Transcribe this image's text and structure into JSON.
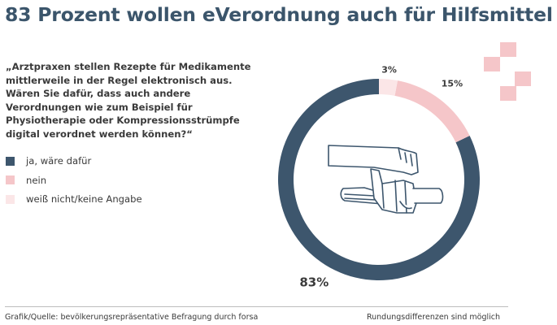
{
  "title": "83 Prozent wollen eVerordnung auch für Hilfsmittel",
  "question": "„Arztpraxen stellen Rezepte für Medikamente mittlerweile in der Regel elektronisch aus. Wären Sie dafür, dass auch andere Verordnungen wie zum Beispiel für Physiotherapie oder Kompressionsstrümpfe digital verordnet werden können?“",
  "footer": {
    "source": "Grafik/Quelle: bevölkerungsrepräsentative Befragung durch forsa",
    "note": "Rundungsdifferenzen sind möglich"
  },
  "colors": {
    "title": "#3b556b",
    "ja": "#3d566d",
    "nein": "#f5c6c9",
    "weiss_nicht": "#fbe6e7",
    "deco": "#f5c6c9"
  },
  "icon": "hand-with-compression-stocking-icon",
  "chart_data": {
    "type": "pie",
    "donut": true,
    "labels": [
      "ja, wäre dafür",
      "nein",
      "weiß nicht/keine Angabe"
    ],
    "values": [
      83,
      15,
      3
    ],
    "value_labels": [
      "83%",
      "15%",
      "3%"
    ],
    "unit": "%",
    "colors": [
      "#3d566d",
      "#f5c6c9",
      "#fbe6e7"
    ],
    "legend_position": "left"
  }
}
